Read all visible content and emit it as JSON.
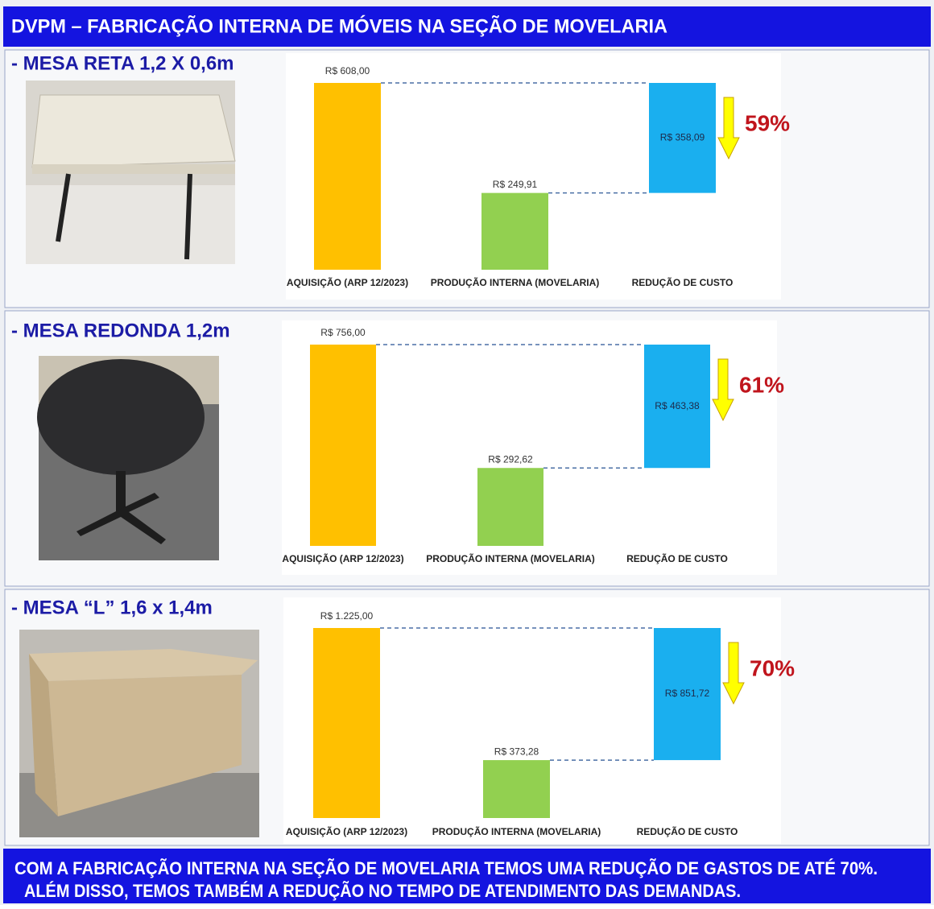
{
  "header": "DVPM – FABRICAÇÃO INTERNA DE MÓVEIS NA SEÇÃO DE MOVELARIA",
  "chart_data": [
    {
      "type": "waterfall",
      "title": "- MESA RETA 1,2 X 0,6m",
      "categories": [
        "AQUISIÇÃO (ARP 12/2023)",
        "PRODUÇÃO INTERNA (MOVELARIA)",
        "REDUÇÃO DE CUSTO"
      ],
      "values": [
        608,
        249.91,
        358.09
      ],
      "value_labels": [
        "R$ 608,00",
        "R$ 249,91",
        "R$ 358,09"
      ],
      "colors": [
        "#FFC000",
        "#92D050",
        "#1AAFEF"
      ],
      "annotation": "59%"
    },
    {
      "type": "waterfall",
      "title": "- MESA REDONDA 1,2m",
      "categories": [
        "AQUISIÇÃO (ARP 12/2023)",
        "PRODUÇÃO INTERNA (MOVELARIA)",
        "REDUÇÃO DE CUSTO"
      ],
      "values": [
        756,
        292.62,
        463.38
      ],
      "value_labels": [
        "R$ 756,00",
        "R$ 292,62",
        "R$ 463,38"
      ],
      "colors": [
        "#FFC000",
        "#92D050",
        "#1AAFEF"
      ],
      "annotation": "61%"
    },
    {
      "type": "waterfall",
      "title": "- MESA “L” 1,6 x 1,4m",
      "categories": [
        "AQUISIÇÃO (ARP 12/2023)",
        "PRODUÇÃO INTERNA (MOVELARIA)",
        "REDUÇÃO DE CUSTO"
      ],
      "values": [
        1225,
        373.28,
        851.72
      ],
      "value_labels": [
        "R$ 1.225,00",
        "R$ 373,28",
        "R$ 851,72"
      ],
      "colors": [
        "#FFC000",
        "#92D050",
        "#1AAFEF"
      ],
      "annotation": "70%"
    }
  ],
  "footer": [
    "COM A FABRICAÇÃO INTERNA NA SEÇÃO DE MOVELARIA TEMOS UMA REDUÇÃO DE GASTOS DE ATÉ 70%.",
    "ALÉM DISSO, TEMOS TAMBÉM A REDUÇÃO NO TEMPO DE ATENDIMENTO DAS DEMANDAS."
  ]
}
